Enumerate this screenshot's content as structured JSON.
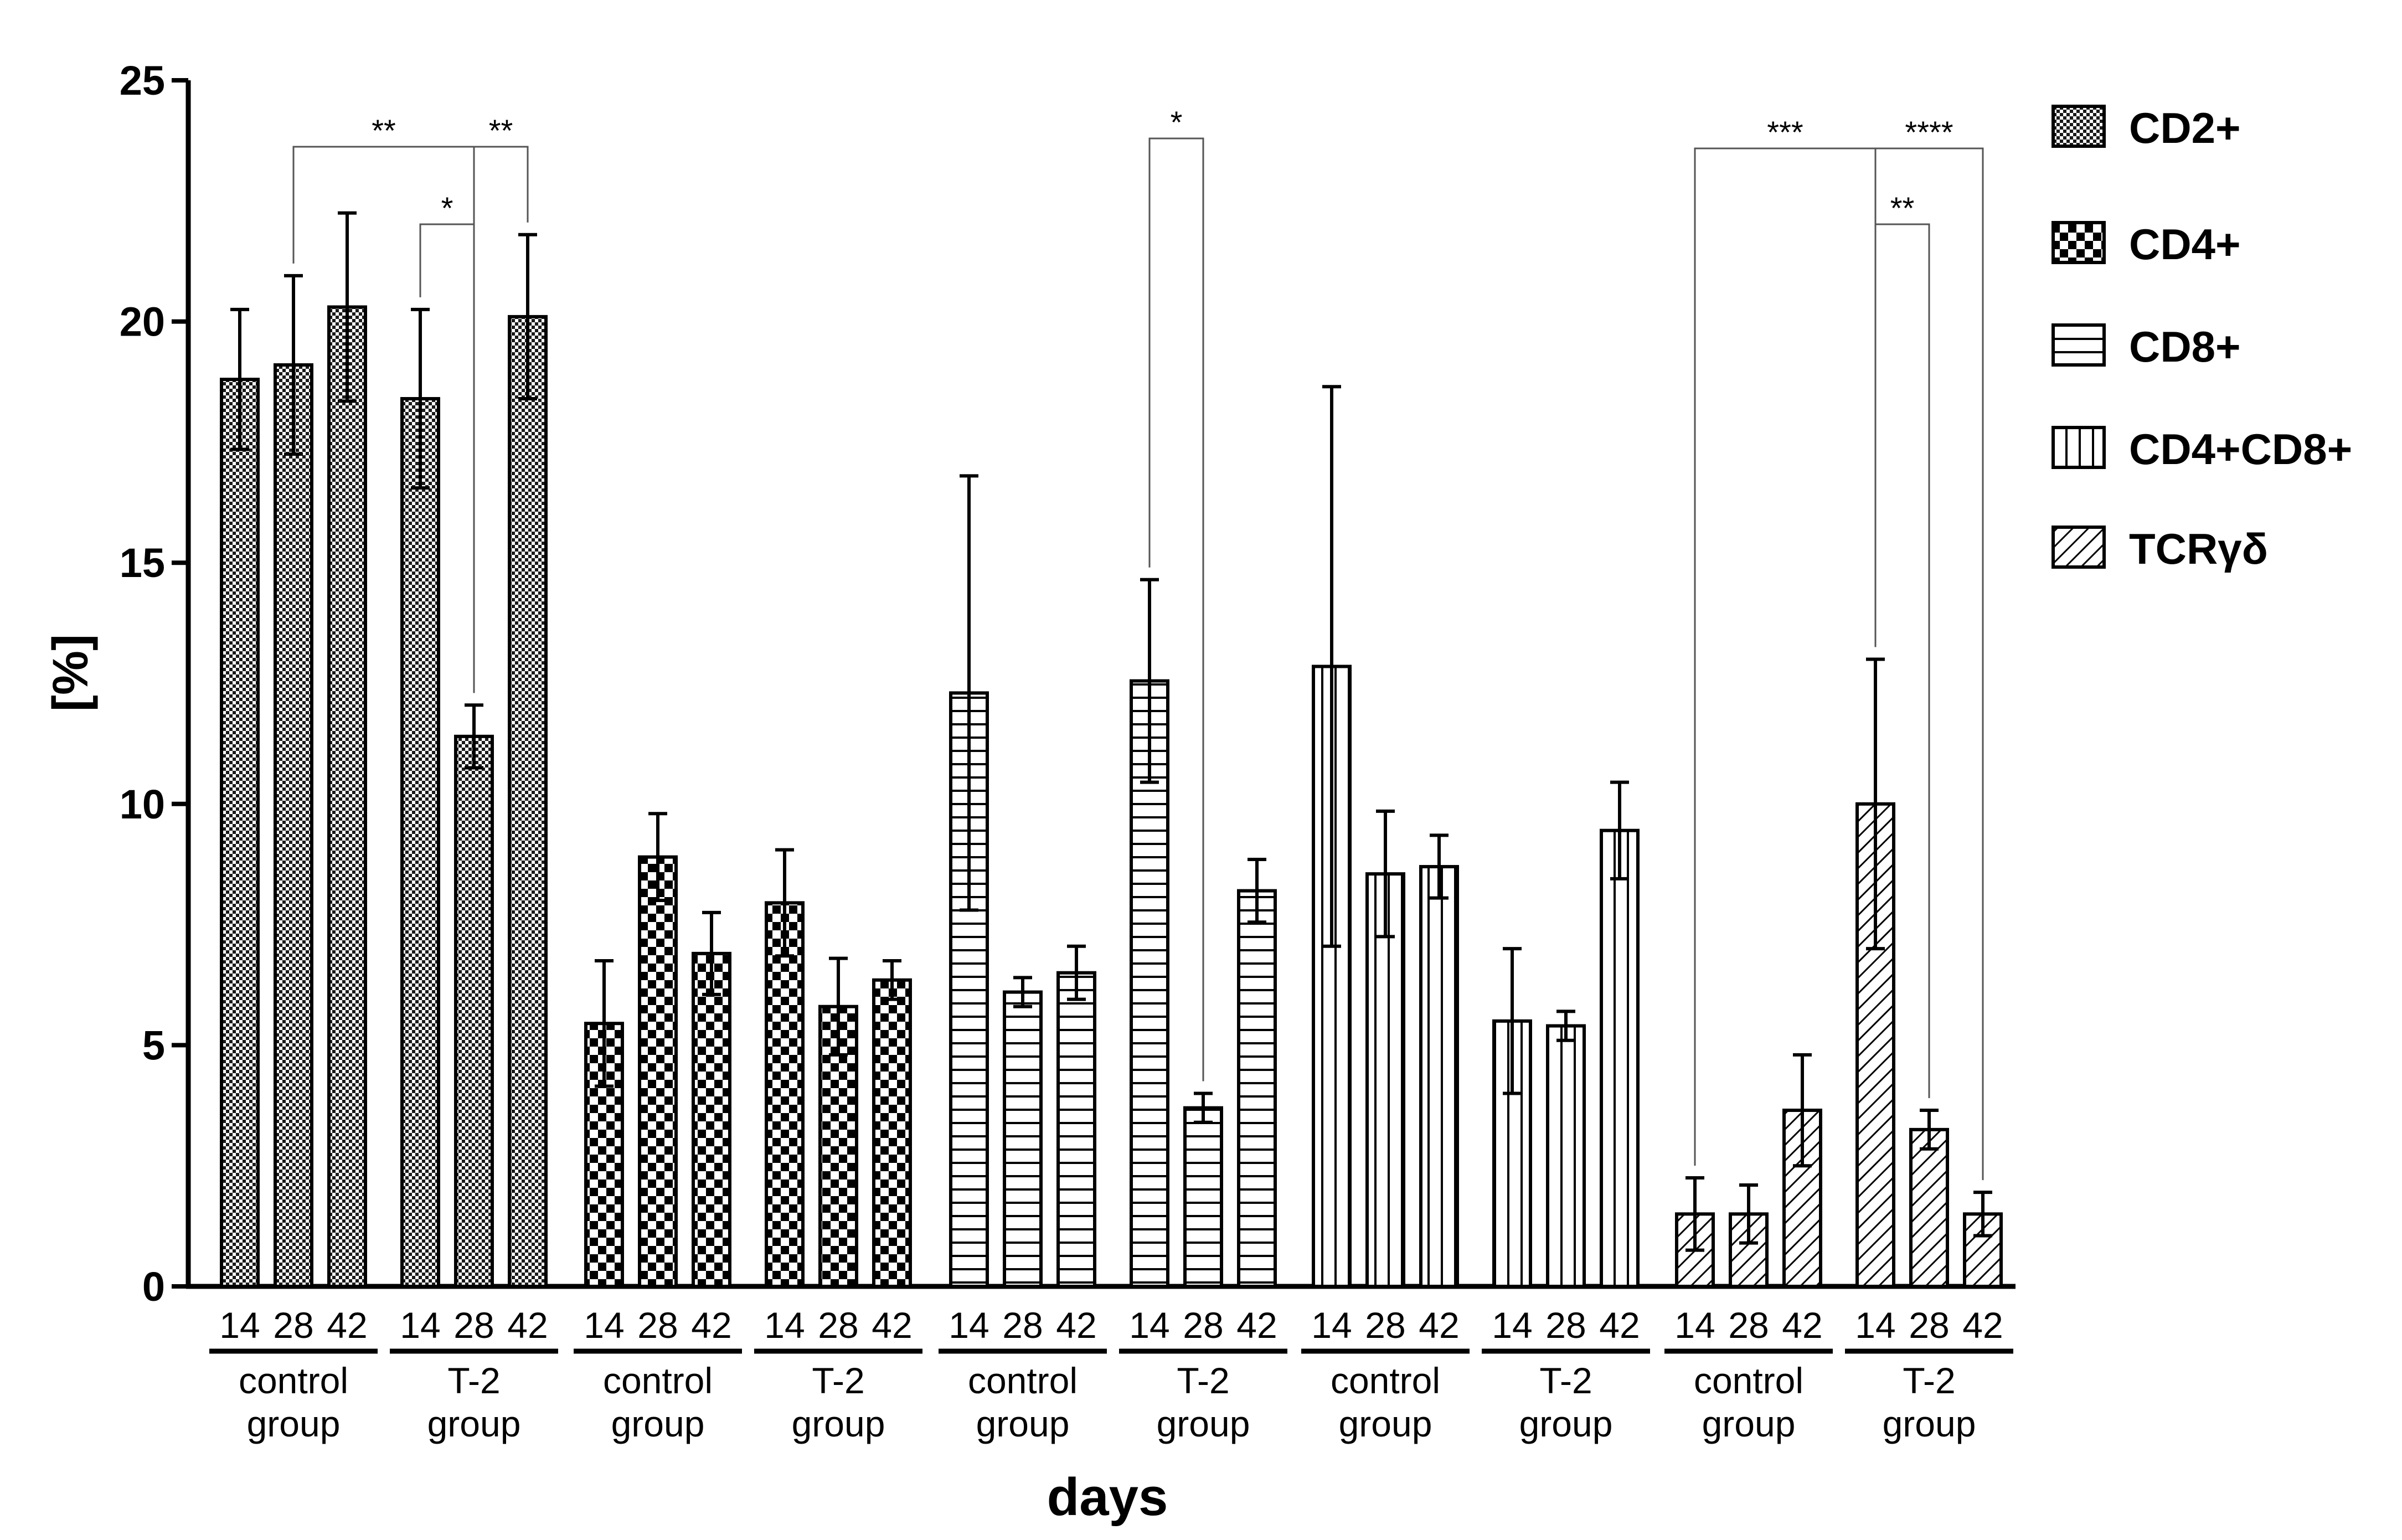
{
  "chart_data": {
    "type": "bar",
    "title": "",
    "xlabel": "days",
    "ylabel": "[%]",
    "ylim": [
      0,
      25
    ],
    "yticks": [
      0,
      5,
      10,
      15,
      20,
      25
    ],
    "grid": false,
    "legend_position": "right",
    "categories": [
      "14",
      "28",
      "42",
      "14",
      "28",
      "42"
    ],
    "group_labels": [
      {
        "line1": "control",
        "line2": "group"
      },
      {
        "line1": "T-2",
        "line2": "group"
      }
    ],
    "series": [
      {
        "name": "CD2+",
        "pattern": "fine-check",
        "values": [
          18.8,
          19.1,
          20.3,
          18.4,
          11.4,
          20.1
        ],
        "errors": [
          1.45,
          1.85,
          1.95,
          1.85,
          0.65,
          1.7
        ]
      },
      {
        "name": "CD4+",
        "pattern": "checker",
        "values": [
          5.45,
          8.9,
          6.9,
          7.95,
          5.8,
          6.35
        ],
        "errors": [
          1.3,
          0.9,
          0.85,
          1.1,
          1.0,
          0.4
        ]
      },
      {
        "name": "CD8+",
        "pattern": "horizontal",
        "values": [
          12.3,
          6.1,
          6.5,
          12.55,
          3.7,
          8.2
        ],
        "errors": [
          4.5,
          0.3,
          0.55,
          2.1,
          0.3,
          0.65
        ]
      },
      {
        "name": "CD4+CD8+",
        "pattern": "vertical",
        "values": [
          12.85,
          8.55,
          8.7,
          5.5,
          5.4,
          9.45
        ],
        "errors": [
          5.8,
          1.3,
          0.65,
          1.5,
          0.3,
          1.0
        ]
      },
      {
        "name": "TCRγδ",
        "pattern": "diagonal",
        "values": [
          1.5,
          1.5,
          3.65,
          10.0,
          3.25,
          1.5
        ],
        "errors": [
          0.75,
          0.6,
          1.15,
          3.0,
          0.4,
          0.45
        ]
      }
    ],
    "significance": [
      {
        "series": 0,
        "from": 1,
        "to": 4,
        "label": "**"
      },
      {
        "series": 0,
        "from": 3,
        "to": 4,
        "label": "*"
      },
      {
        "series": 0,
        "from": 4,
        "to": 5,
        "label": "**"
      },
      {
        "series": 2,
        "from": 3,
        "to": 4,
        "label": "*"
      },
      {
        "series": 4,
        "from": 0,
        "to": 3,
        "label": "***"
      },
      {
        "series": 4,
        "from": 3,
        "to": 5,
        "label": "****"
      },
      {
        "series": 4,
        "from": 3,
        "to": 4,
        "label": "**"
      }
    ],
    "colors": {
      "bar_fill": "#ffffff",
      "stroke": "#000000",
      "pattern_ink": "#000000",
      "background": "#ffffff"
    }
  }
}
